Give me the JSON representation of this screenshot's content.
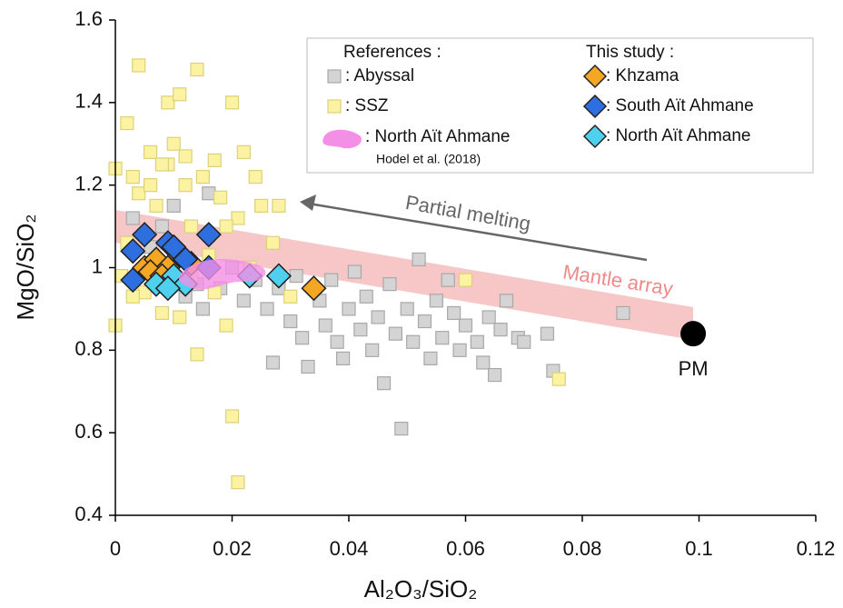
{
  "chart_data": {
    "type": "scatter",
    "x_label": "Al₂O₃/SiO₂",
    "y_label": "MgO/SiO₂",
    "xlim": [
      0,
      0.12
    ],
    "xticks": [
      0,
      0.02,
      0.04,
      0.06,
      0.08,
      0.1,
      0.12
    ],
    "ylim": [
      0.4,
      1.6
    ],
    "yticks": [
      0.4,
      0.6,
      0.8,
      1,
      1.2,
      1.4,
      1.6
    ],
    "legend_titles": [
      "References :",
      "This study :"
    ],
    "series": [
      {
        "name": ": Abyssal",
        "marker": "square",
        "color": "#d4d4d4",
        "edge": "#a8a8a8",
        "x": [
          0.003,
          0.006,
          0.008,
          0.01,
          0.012,
          0.014,
          0.016,
          0.018,
          0.02,
          0.022,
          0.024,
          0.026,
          0.027,
          0.028,
          0.03,
          0.031,
          0.032,
          0.033,
          0.035,
          0.036,
          0.037,
          0.038,
          0.039,
          0.04,
          0.041,
          0.042,
          0.043,
          0.044,
          0.045,
          0.046,
          0.047,
          0.048,
          0.049,
          0.05,
          0.051,
          0.052,
          0.053,
          0.054,
          0.055,
          0.056,
          0.058,
          0.059,
          0.06,
          0.062,
          0.063,
          0.064,
          0.065,
          0.066,
          0.067,
          0.069,
          0.07,
          0.074,
          0.075,
          0.087,
          0.057,
          0.015
        ],
        "values": [
          1.12,
          1.05,
          1.1,
          1.15,
          0.93,
          0.96,
          1.18,
          0.95,
          1.0,
          0.92,
          0.97,
          0.9,
          0.77,
          0.95,
          0.87,
          0.98,
          0.83,
          0.76,
          0.92,
          0.86,
          0.97,
          0.82,
          0.78,
          0.9,
          0.99,
          0.85,
          0.93,
          0.8,
          0.88,
          0.72,
          0.96,
          0.84,
          0.61,
          0.9,
          0.82,
          1.02,
          0.87,
          0.78,
          0.92,
          0.83,
          0.89,
          0.8,
          0.86,
          0.82,
          0.77,
          0.88,
          0.74,
          0.85,
          0.92,
          0.83,
          0.82,
          0.84,
          0.75,
          0.89,
          0.97,
          0.9
        ]
      },
      {
        "name": ": SSZ",
        "marker": "square",
        "color": "#fbf3a2",
        "edge": "#ddd07a",
        "x": [
          0.0,
          0.0,
          0.001,
          0.002,
          0.003,
          0.004,
          0.004,
          0.005,
          0.006,
          0.007,
          0.008,
          0.009,
          0.009,
          0.01,
          0.011,
          0.011,
          0.012,
          0.013,
          0.014,
          0.014,
          0.015,
          0.016,
          0.017,
          0.018,
          0.019,
          0.02,
          0.02,
          0.021,
          0.021,
          0.022,
          0.023,
          0.025,
          0.027,
          0.028,
          0.03,
          0.012,
          0.006,
          0.002,
          0.017,
          0.024,
          0.076,
          0.06,
          0.003,
          0.008,
          0.013,
          0.019
        ],
        "values": [
          0.86,
          1.24,
          0.98,
          1.35,
          1.22,
          1.49,
          1.18,
          0.94,
          1.28,
          1.15,
          0.89,
          1.4,
          1.25,
          1.3,
          1.42,
          0.88,
          1.2,
          1.1,
          1.48,
          0.79,
          1.22,
          1.03,
          1.26,
          1.17,
          0.86,
          1.4,
          0.64,
          0.48,
          1.12,
          1.28,
          1.0,
          1.15,
          1.06,
          1.15,
          0.93,
          1.27,
          1.2,
          1.06,
          0.94,
          1.22,
          0.73,
          0.97,
          0.93,
          1.25,
          0.98,
          1.1
        ]
      },
      {
        "name": ": Khzama",
        "marker": "diamond",
        "color": "#f5a623",
        "edge": "#222",
        "x": [
          0.005,
          0.007,
          0.009,
          0.011,
          0.006,
          0.013,
          0.008,
          0.034
        ],
        "values": [
          1.0,
          1.02,
          1.0,
          1.03,
          0.99,
          1.01,
          0.98,
          0.95
        ]
      },
      {
        "name": ": South Aït Ahmane",
        "marker": "diamond",
        "color": "#2e6fe0",
        "edge": "#222",
        "x": [
          0.003,
          0.005,
          0.009,
          0.016,
          0.016,
          0.003,
          0.01,
          0.012
        ],
        "values": [
          1.04,
          1.08,
          1.06,
          1.08,
          1.0,
          0.97,
          1.05,
          1.02
        ]
      },
      {
        "name": ": North Aït Ahmane",
        "marker": "diamond",
        "color": "#4fd0ef",
        "edge": "#222",
        "x": [
          0.007,
          0.01,
          0.012,
          0.023,
          0.028,
          0.009
        ],
        "values": [
          0.96,
          0.98,
          0.96,
          0.98,
          0.98,
          0.95
        ]
      }
    ],
    "field": {
      "name": ": North Aït Ahmane",
      "source": "Hodel et al. (2018)",
      "color": "#f48fe6"
    },
    "pm": {
      "label": "PM",
      "x": 0.099,
      "y": 0.84
    },
    "annotations": [
      "Partial melting",
      "Mantle array"
    ]
  }
}
